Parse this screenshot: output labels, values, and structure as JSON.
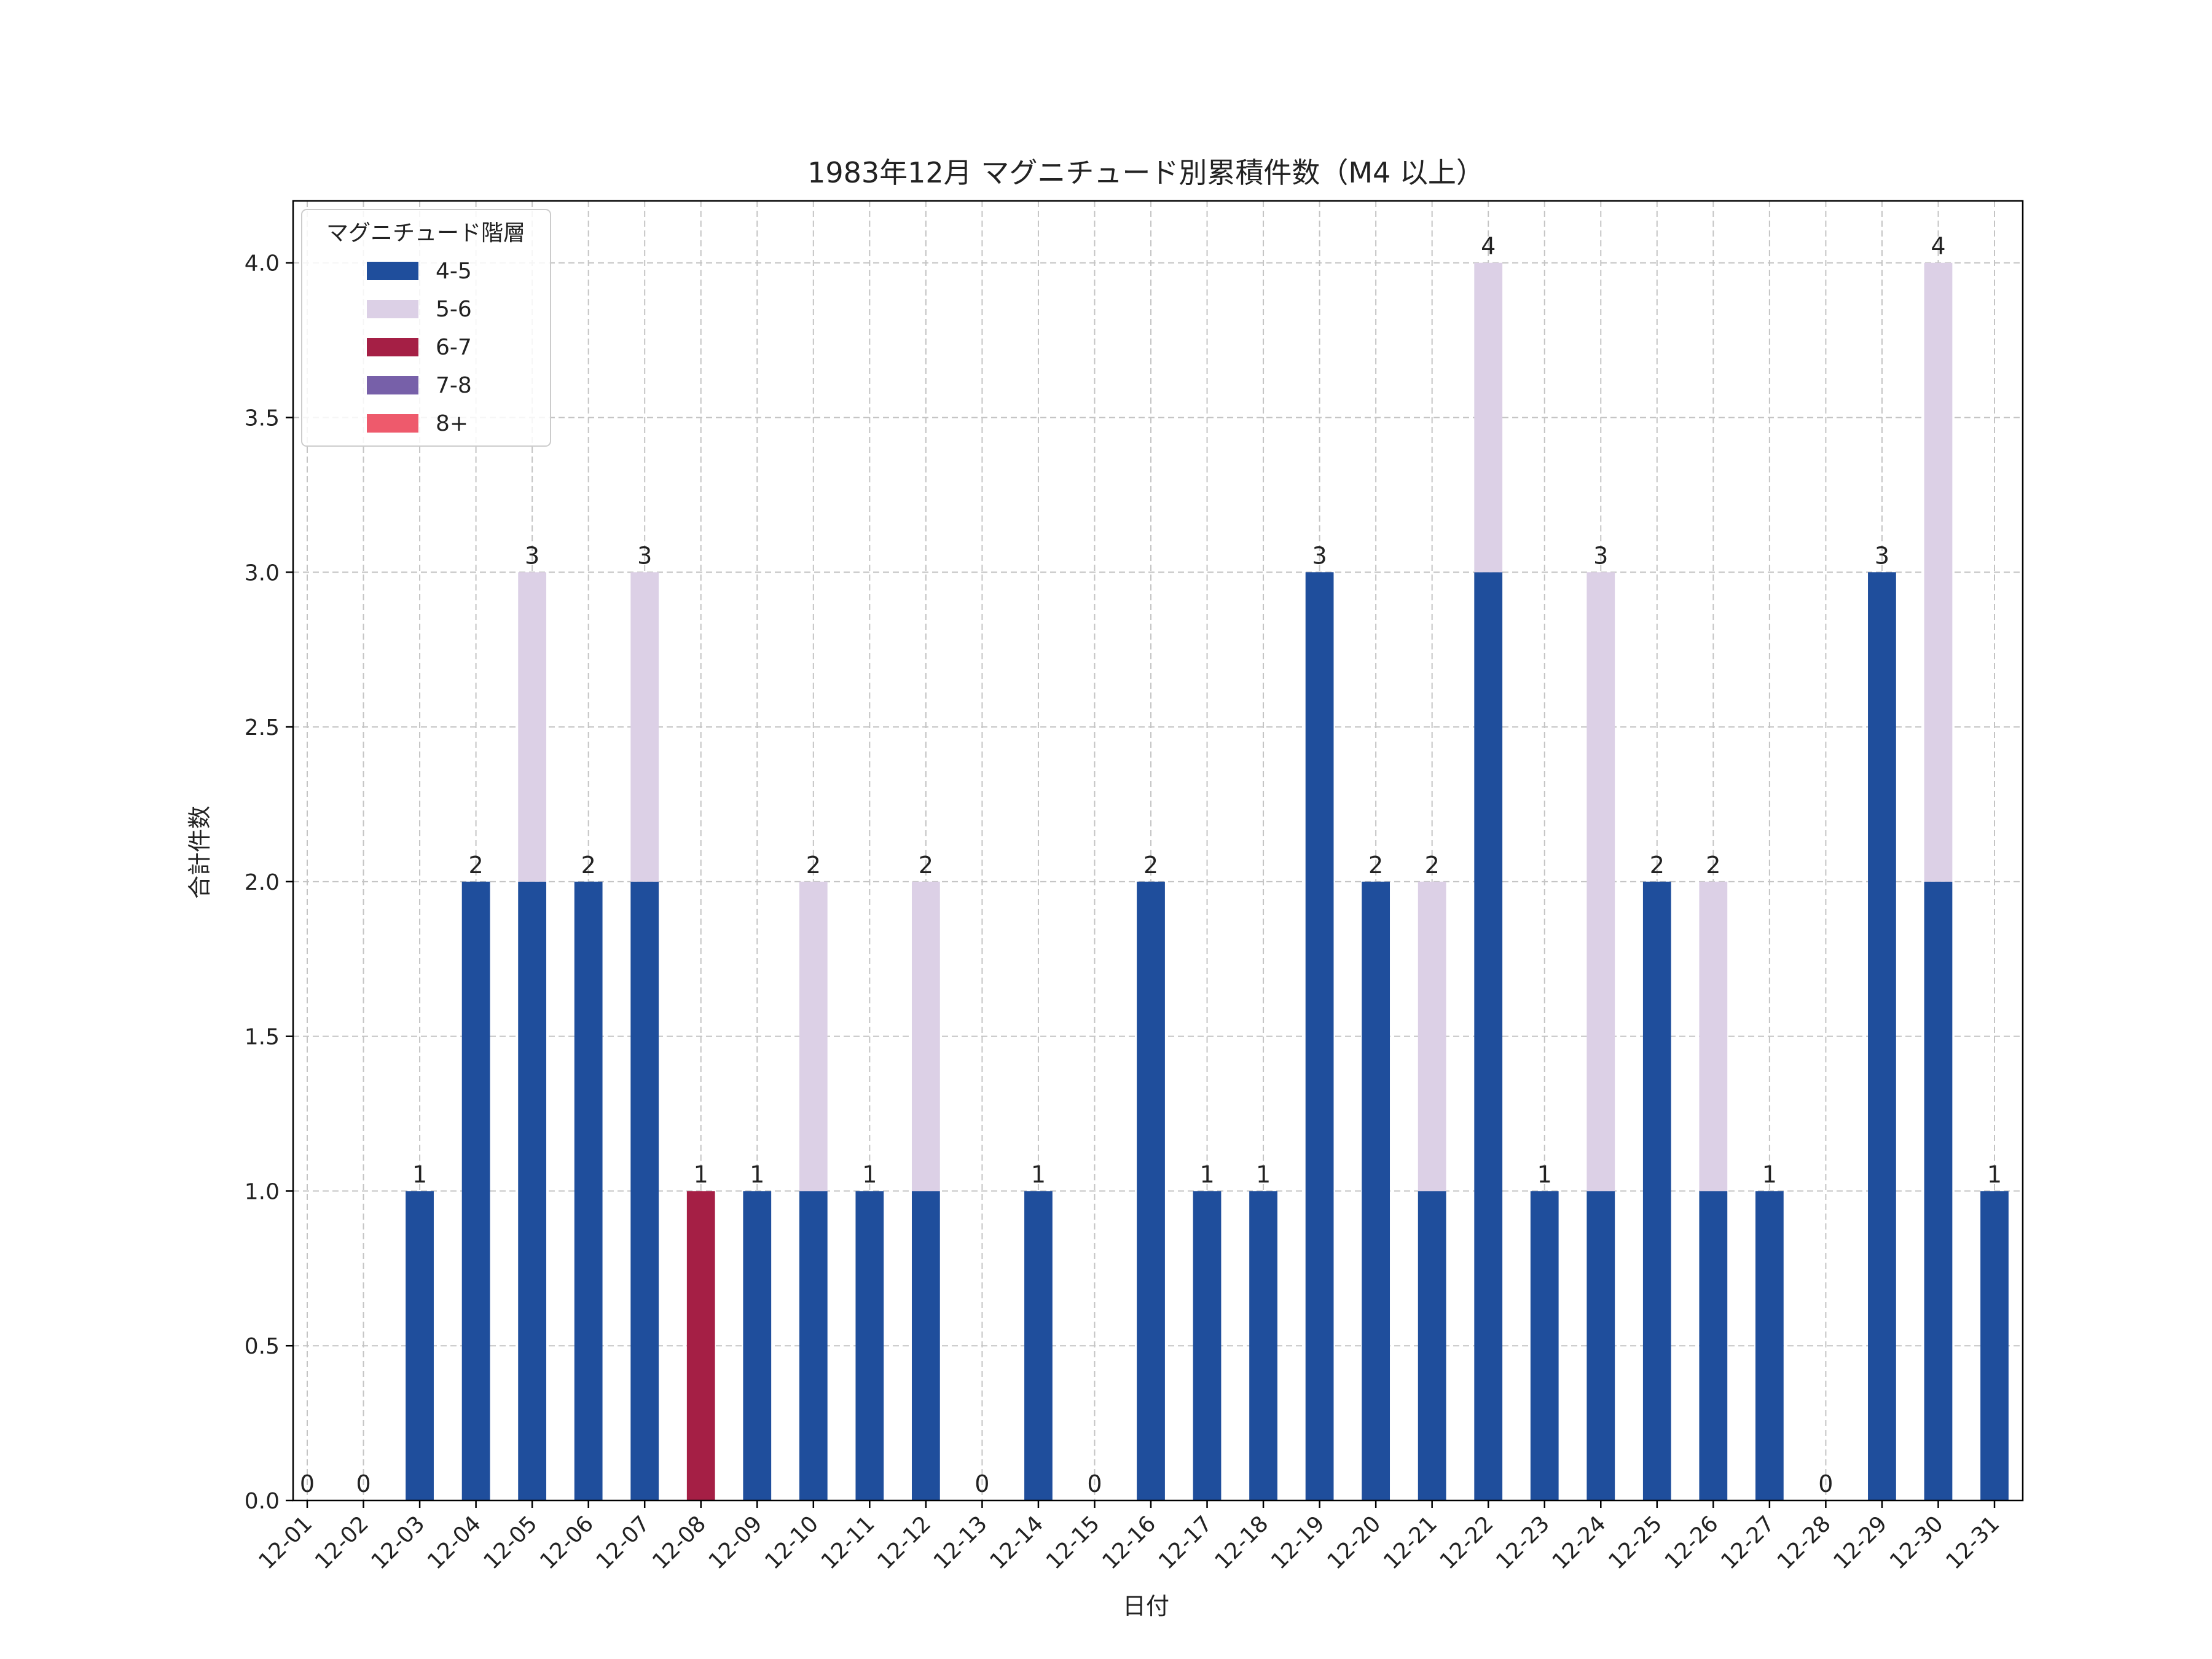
{
  "chart_data": {
    "type": "bar",
    "stacked": true,
    "title": "1983年12月 マグニチュード別累積件数（M4 以上）",
    "xlabel": "日付",
    "ylabel": "合計件数",
    "ylim": [
      0,
      4.2
    ],
    "yticks": [
      "0.0",
      "0.5",
      "1.0",
      "1.5",
      "2.0",
      "2.5",
      "3.0",
      "3.5",
      "4.0"
    ],
    "grid": true,
    "legend": {
      "title": "マグニチュード階層",
      "placement": "top-left"
    },
    "categories": [
      "12-01",
      "12-02",
      "12-03",
      "12-04",
      "12-05",
      "12-06",
      "12-07",
      "12-08",
      "12-09",
      "12-10",
      "12-11",
      "12-12",
      "12-13",
      "12-14",
      "12-15",
      "12-16",
      "12-17",
      "12-18",
      "12-19",
      "12-20",
      "12-21",
      "12-22",
      "12-23",
      "12-24",
      "12-25",
      "12-26",
      "12-27",
      "12-28",
      "12-29",
      "12-30",
      "12-31"
    ],
    "series": [
      {
        "name": "4-5",
        "color": "#1f4e9c",
        "values": [
          0,
          0,
          1,
          2,
          2,
          2,
          2,
          0,
          1,
          1,
          1,
          1,
          0,
          1,
          0,
          2,
          1,
          1,
          3,
          2,
          1,
          3,
          1,
          1,
          2,
          1,
          1,
          0,
          3,
          2,
          1
        ]
      },
      {
        "name": "5-6",
        "color": "#dcd0e6",
        "values": [
          0,
          0,
          0,
          0,
          1,
          0,
          1,
          0,
          0,
          1,
          0,
          1,
          0,
          0,
          0,
          0,
          0,
          0,
          0,
          0,
          1,
          1,
          0,
          2,
          0,
          1,
          0,
          0,
          0,
          2,
          0
        ]
      },
      {
        "name": "6-7",
        "color": "#a51f45",
        "values": [
          0,
          0,
          0,
          0,
          0,
          0,
          0,
          1,
          0,
          0,
          0,
          0,
          0,
          0,
          0,
          0,
          0,
          0,
          0,
          0,
          0,
          0,
          0,
          0,
          0,
          0,
          0,
          0,
          0,
          0,
          0
        ]
      },
      {
        "name": "7-8",
        "color": "#7760a9",
        "values": [
          0,
          0,
          0,
          0,
          0,
          0,
          0,
          0,
          0,
          0,
          0,
          0,
          0,
          0,
          0,
          0,
          0,
          0,
          0,
          0,
          0,
          0,
          0,
          0,
          0,
          0,
          0,
          0,
          0,
          0,
          0
        ]
      },
      {
        "name": "8+",
        "color": "#ee5a6c",
        "values": [
          0,
          0,
          0,
          0,
          0,
          0,
          0,
          0,
          0,
          0,
          0,
          0,
          0,
          0,
          0,
          0,
          0,
          0,
          0,
          0,
          0,
          0,
          0,
          0,
          0,
          0,
          0,
          0,
          0,
          0,
          0
        ]
      }
    ],
    "totals": [
      0,
      0,
      1,
      2,
      3,
      2,
      3,
      1,
      1,
      2,
      1,
      2,
      0,
      1,
      0,
      2,
      1,
      1,
      3,
      2,
      2,
      4,
      1,
      3,
      2,
      2,
      1,
      0,
      3,
      4,
      1
    ]
  }
}
